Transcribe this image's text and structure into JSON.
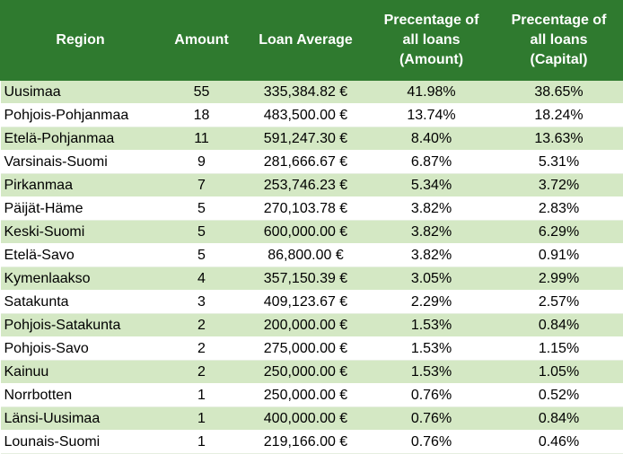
{
  "table": {
    "headers": {
      "region": "Region",
      "amount": "Amount",
      "loan_average": "Loan Average",
      "pct_amount": [
        "Precentage of",
        "all loans",
        "(Amount)"
      ],
      "pct_capital": [
        "Precentage of",
        "all loans",
        "(Capital)"
      ]
    },
    "rows": [
      {
        "region": "Uusimaa",
        "amount": "55",
        "loan_average": "335,384.82 €",
        "pct_amount": "41.98%",
        "pct_capital": "38.65%"
      },
      {
        "region": "Pohjois-Pohjanmaa",
        "amount": "18",
        "loan_average": "483,500.00 €",
        "pct_amount": "13.74%",
        "pct_capital": "18.24%"
      },
      {
        "region": "Etelä-Pohjanmaa",
        "amount": "11",
        "loan_average": "591,247.30 €",
        "pct_amount": "8.40%",
        "pct_capital": "13.63%"
      },
      {
        "region": "Varsinais-Suomi",
        "amount": "9",
        "loan_average": "281,666.67 €",
        "pct_amount": "6.87%",
        "pct_capital": "5.31%"
      },
      {
        "region": "Pirkanmaa",
        "amount": "7",
        "loan_average": "253,746.23 €",
        "pct_amount": "5.34%",
        "pct_capital": "3.72%"
      },
      {
        "region": "Päijät-Häme",
        "amount": "5",
        "loan_average": "270,103.78 €",
        "pct_amount": "3.82%",
        "pct_capital": "2.83%"
      },
      {
        "region": "Keski-Suomi",
        "amount": "5",
        "loan_average": "600,000.00 €",
        "pct_amount": "3.82%",
        "pct_capital": "6.29%"
      },
      {
        "region": "Etelä-Savo",
        "amount": "5",
        "loan_average": "86,800.00 €",
        "pct_amount": "3.82%",
        "pct_capital": "0.91%"
      },
      {
        "region": "Kymenlaakso",
        "amount": "4",
        "loan_average": "357,150.39 €",
        "pct_amount": "3.05%",
        "pct_capital": "2.99%"
      },
      {
        "region": "Satakunta",
        "amount": "3",
        "loan_average": "409,123.67 €",
        "pct_amount": "2.29%",
        "pct_capital": "2.57%"
      },
      {
        "region": "Pohjois-Satakunta",
        "amount": "2",
        "loan_average": "200,000.00 €",
        "pct_amount": "1.53%",
        "pct_capital": "0.84%"
      },
      {
        "region": "Pohjois-Savo",
        "amount": "2",
        "loan_average": "275,000.00 €",
        "pct_amount": "1.53%",
        "pct_capital": "1.15%"
      },
      {
        "region": "Kainuu",
        "amount": "2",
        "loan_average": "250,000.00 €",
        "pct_amount": "1.53%",
        "pct_capital": "1.05%"
      },
      {
        "region": "Norrbotten",
        "amount": "1",
        "loan_average": "250,000.00 €",
        "pct_amount": "0.76%",
        "pct_capital": "0.52%"
      },
      {
        "region": "Länsi-Uusimaa",
        "amount": "1",
        "loan_average": "400,000.00 €",
        "pct_amount": "0.76%",
        "pct_capital": "0.84%"
      },
      {
        "region": "Lounais-Suomi",
        "amount": "1",
        "loan_average": "219,166.00 €",
        "pct_amount": "0.76%",
        "pct_capital": "0.46%"
      }
    ]
  },
  "colors": {
    "header_bg": "#2f7a2f",
    "header_text": "#ffffff",
    "band_row": "#d4e8c4",
    "plain_row": "#ffffff"
  }
}
